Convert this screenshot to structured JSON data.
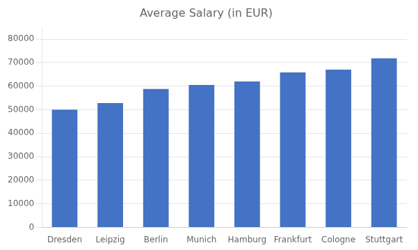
{
  "chart_data": {
    "type": "bar",
    "title": "Average Salary (in EUR)",
    "categories": [
      "Dresden",
      "Leipzig",
      "Berlin",
      "Munich",
      "Hamburg",
      "Frankfurt",
      "Cologne",
      "Stuttgart"
    ],
    "values": [
      50000,
      52800,
      58800,
      60500,
      62000,
      65800,
      67000,
      71800
    ],
    "color": "#4472C4",
    "ylim": [
      0,
      85000
    ],
    "yticks": [
      0,
      10000,
      20000,
      30000,
      40000,
      50000,
      60000,
      70000,
      80000
    ],
    "grid": true
  }
}
